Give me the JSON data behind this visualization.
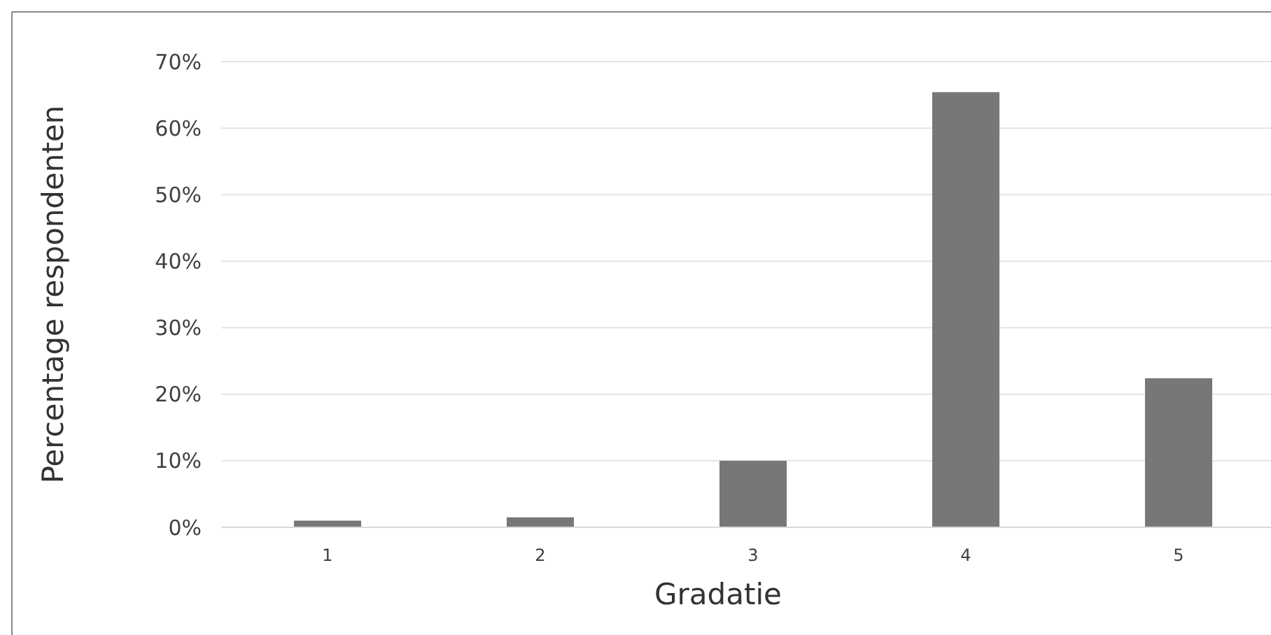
{
  "chart_data": {
    "type": "bar",
    "xlabel": "Gradatie",
    "ylabel": "Percentage respondenten",
    "categories": [
      "1",
      "2",
      "3",
      "4",
      "5"
    ],
    "values": [
      1.0,
      1.5,
      10.0,
      65.4,
      22.4
    ],
    "color": "#767776",
    "ylim": [
      0,
      70
    ],
    "yticks": [
      {
        "value": 0,
        "label": "0%"
      },
      {
        "value": 10,
        "label": "10%"
      },
      {
        "value": 20,
        "label": "20%"
      },
      {
        "value": 30,
        "label": "30%"
      },
      {
        "value": 40,
        "label": "40%"
      },
      {
        "value": 50,
        "label": "50%"
      },
      {
        "value": 60,
        "label": "60%"
      },
      {
        "value": 70,
        "label": "70%"
      }
    ],
    "grid": "y"
  }
}
